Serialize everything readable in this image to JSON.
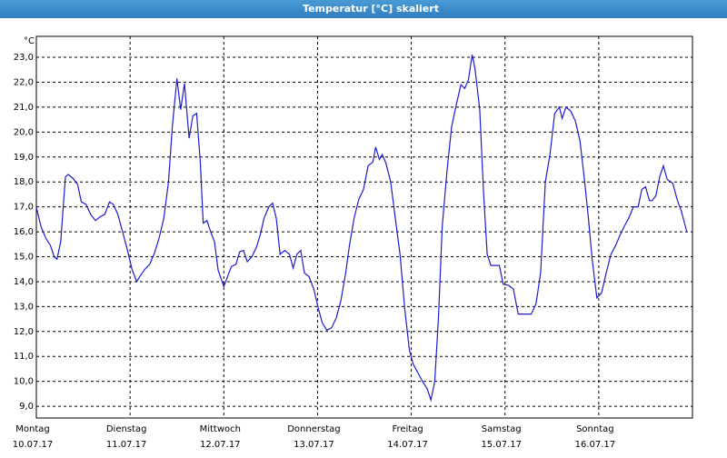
{
  "chart_data": {
    "type": "line",
    "title": "Temperatur [°C] skaliert",
    "y_unit": "°C",
    "x": [
      0,
      0.05,
      0.1,
      0.15,
      0.19,
      0.22,
      0.26,
      0.31,
      0.34,
      0.39,
      0.44,
      0.48,
      0.53,
      0.58,
      0.63,
      0.68,
      0.73,
      0.78,
      0.82,
      0.87,
      0.92,
      0.97,
      1.02,
      1.07,
      1.12,
      1.16,
      1.21,
      1.26,
      1.31,
      1.36,
      1.41,
      1.45,
      1.5,
      1.54,
      1.58,
      1.63,
      1.67,
      1.71,
      1.75,
      1.78,
      1.82,
      1.86,
      1.9,
      1.94,
      2.0,
      2.04,
      2.08,
      2.13,
      2.17,
      2.21,
      2.25,
      2.3,
      2.35,
      2.39,
      2.43,
      2.48,
      2.52,
      2.56,
      2.6,
      2.65,
      2.7,
      2.74,
      2.78,
      2.82,
      2.86,
      2.91,
      2.96,
      3.01,
      3.05,
      3.1,
      3.15,
      3.2,
      3.25,
      3.3,
      3.34,
      3.39,
      3.44,
      3.49,
      3.54,
      3.59,
      3.62,
      3.66,
      3.69,
      3.73,
      3.78,
      3.83,
      3.88,
      3.93,
      3.98,
      4.02,
      4.07,
      4.12,
      4.17,
      4.21,
      4.25,
      4.29,
      4.33,
      4.38,
      4.43,
      4.48,
      4.53,
      4.57,
      4.61,
      4.65,
      4.68,
      4.73,
      4.77,
      4.81,
      4.85,
      4.9,
      4.94,
      4.98,
      5.04,
      5.09,
      5.14,
      5.19,
      5.24,
      5.28,
      5.33,
      5.38,
      5.43,
      5.48,
      5.53,
      5.58,
      5.61,
      5.65,
      5.7,
      5.75,
      5.8,
      5.85,
      5.89,
      5.93,
      5.98,
      6.03,
      6.08,
      6.13,
      6.18,
      6.22,
      6.27,
      6.32,
      6.37,
      6.42,
      6.46,
      6.5,
      6.54,
      6.57,
      6.61,
      6.65,
      6.69,
      6.73,
      6.79,
      6.84,
      6.88,
      6.94
    ],
    "series": [
      {
        "name": "Temperatur",
        "color": "#1c1ccc",
        "values": [
          16.98,
          16.2,
          15.75,
          15.45,
          15.0,
          14.9,
          15.6,
          18.2,
          18.3,
          18.15,
          17.9,
          17.2,
          17.1,
          16.7,
          16.45,
          16.6,
          16.7,
          17.2,
          17.1,
          16.7,
          16.0,
          15.3,
          14.5,
          14.0,
          14.3,
          14.5,
          14.7,
          15.15,
          15.75,
          16.55,
          18.0,
          20.2,
          22.15,
          20.9,
          21.95,
          19.75,
          20.65,
          20.75,
          18.75,
          16.35,
          16.45,
          16.0,
          15.6,
          14.45,
          13.8,
          14.2,
          14.6,
          14.7,
          15.2,
          15.25,
          14.8,
          15.0,
          15.4,
          15.9,
          16.55,
          17.0,
          17.15,
          16.55,
          15.1,
          15.25,
          15.1,
          14.55,
          15.1,
          15.25,
          14.35,
          14.2,
          13.7,
          12.9,
          12.35,
          12.05,
          12.15,
          12.55,
          13.25,
          14.35,
          15.45,
          16.55,
          17.3,
          17.7,
          18.65,
          18.8,
          19.4,
          18.9,
          19.1,
          18.75,
          18.0,
          16.55,
          15.1,
          12.9,
          11.25,
          10.7,
          10.35,
          10.0,
          9.7,
          9.25,
          10.0,
          12.55,
          16.2,
          18.4,
          20.2,
          21.1,
          21.9,
          21.75,
          22.1,
          23.1,
          22.55,
          20.9,
          17.65,
          15.1,
          14.65,
          14.65,
          14.65,
          13.9,
          13.85,
          13.7,
          12.7,
          12.7,
          12.7,
          12.7,
          13.1,
          14.35,
          18.0,
          19.1,
          20.75,
          21.0,
          20.55,
          21.0,
          20.85,
          20.45,
          19.65,
          18.0,
          16.55,
          14.9,
          13.35,
          13.55,
          14.35,
          15.1,
          15.45,
          15.8,
          16.2,
          16.55,
          17.0,
          17.0,
          17.7,
          17.8,
          17.25,
          17.25,
          17.45,
          18.2,
          18.65,
          18.1,
          17.95,
          17.25,
          16.85,
          16.0
        ]
      }
    ],
    "xlim": [
      0,
      7
    ],
    "xticks": [
      {
        "value": 0,
        "label": "Montag"
      },
      {
        "value": 1,
        "label": "Dienstag"
      },
      {
        "value": 2,
        "label": "Mittwoch"
      },
      {
        "value": 3,
        "label": "Donnerstag"
      },
      {
        "value": 4,
        "label": "Freitag"
      },
      {
        "value": 5,
        "label": "Samstag"
      },
      {
        "value": 6,
        "label": "Sonntag"
      }
    ],
    "xtick_dates": [
      "10.07.17",
      "11.07.17",
      "12.07.17",
      "13.07.17",
      "14.07.17",
      "15.07.17",
      "16.07.17"
    ],
    "ylim": [
      8.53,
      23.84
    ],
    "yticks": [
      {
        "value": 9,
        "label": "9,0"
      },
      {
        "value": 10,
        "label": "10,0"
      },
      {
        "value": 11,
        "label": "11,0"
      },
      {
        "value": 12,
        "label": "12,0"
      },
      {
        "value": 13,
        "label": "13,0"
      },
      {
        "value": 14,
        "label": "14,0"
      },
      {
        "value": 15,
        "label": "15,0"
      },
      {
        "value": 16,
        "label": "16,0"
      },
      {
        "value": 17,
        "label": "17,0"
      },
      {
        "value": 18,
        "label": "18,0"
      },
      {
        "value": 19,
        "label": "19,0"
      },
      {
        "value": 20,
        "label": "20,0"
      },
      {
        "value": 21,
        "label": "21,0"
      },
      {
        "value": 22,
        "label": "22,0"
      },
      {
        "value": 23,
        "label": "23,0"
      }
    ],
    "grid": true
  }
}
